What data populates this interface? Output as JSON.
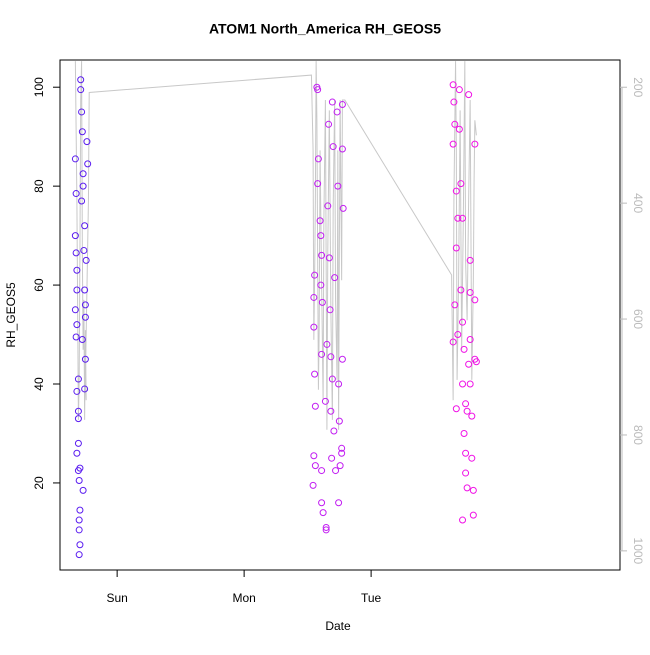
{
  "chart_data": {
    "type": "scatter",
    "title": "ATOM1 North_America RH_GEOS5",
    "x_label": "Date",
    "y_label": "RH_GEOS5",
    "xlim": [
      -0.45,
      3.96
    ],
    "xticks": [
      {
        "value": 0,
        "label": "Sun"
      },
      {
        "value": 1,
        "label": "Mon"
      },
      {
        "value": 2,
        "label": "Tue"
      }
    ],
    "ylim": [
      2.4,
      105.5
    ],
    "yticks": [
      20,
      40,
      60,
      80,
      100
    ],
    "y2lim": [
      1033,
      153
    ],
    "y2ticks": [
      200,
      400,
      600,
      800,
      1000
    ],
    "y2_color": "#bbbbbb",
    "series": [
      {
        "color": "#5a1cf0",
        "x": [
          -0.329,
          -0.323,
          -0.329,
          -0.323,
          -0.317,
          -0.317,
          -0.329,
          -0.317,
          -0.323,
          -0.305,
          -0.317,
          -0.305,
          -0.305,
          -0.305,
          -0.317,
          -0.293,
          -0.305,
          -0.299,
          -0.293,
          -0.299,
          -0.299,
          -0.293,
          -0.299,
          -0.287,
          -0.287,
          -0.28,
          -0.274,
          -0.268,
          -0.268,
          -0.28,
          -0.256,
          -0.262,
          -0.244,
          -0.256,
          -0.25,
          -0.25,
          -0.274,
          -0.25,
          -0.256,
          -0.268,
          -0.238,
          -0.232
        ],
        "values": [
          85.5,
          78.5,
          70,
          66.5,
          63,
          59,
          55,
          52,
          49.5,
          41,
          38.5,
          34.5,
          33,
          28,
          26,
          23,
          22.5,
          20.5,
          14.5,
          12.5,
          10.5,
          7.5,
          5.5,
          101.5,
          99.5,
          95,
          91,
          82.5,
          80,
          77,
          72,
          67,
          65,
          59,
          56,
          53.5,
          49,
          45,
          39,
          18.5,
          89,
          84.5
        ]
      },
      {
        "color": "#c21ef2",
        "x": [
          1.549,
          1.555,
          1.549,
          1.555,
          1.549,
          1.543,
          1.561,
          1.561,
          1.573,
          1.579,
          1.585,
          1.579,
          1.598,
          1.604,
          1.61,
          1.604,
          1.616,
          1.61,
          1.61,
          1.61,
          1.622,
          1.646,
          1.646,
          1.64,
          1.652,
          1.665,
          1.659,
          1.671,
          1.677,
          1.683,
          1.683,
          1.695,
          1.701,
          1.689,
          1.695,
          1.707,
          1.713,
          1.72,
          1.732,
          1.738,
          1.744,
          1.75,
          1.744,
          1.756,
          1.768,
          1.774,
          1.774,
          1.78,
          1.774,
          1.768
        ],
        "values": [
          57.5,
          62,
          51.5,
          42,
          25.5,
          19.5,
          35.5,
          23.5,
          100,
          99.5,
          85.5,
          80.5,
          73,
          70,
          66,
          60,
          56.5,
          46,
          22.5,
          16,
          14,
          11,
          10.5,
          36.5,
          48,
          92.5,
          76,
          65.5,
          55,
          45.5,
          34.5,
          97,
          88,
          25,
          41,
          30.5,
          61.5,
          22.5,
          95,
          80,
          40,
          32.5,
          16,
          23.5,
          27,
          96.5,
          87.5,
          75.5,
          45,
          26
        ]
      },
      {
        "color": "#f012e6",
        "x": [
          2.646,
          2.652,
          2.659,
          2.646,
          2.671,
          2.683,
          2.671,
          2.659,
          2.646,
          2.683,
          2.671,
          2.695,
          2.695,
          2.707,
          2.72,
          2.707,
          2.72,
          2.732,
          2.72,
          2.732,
          2.744,
          2.72,
          2.744,
          2.756,
          2.756,
          2.768,
          2.78,
          2.78,
          2.78,
          2.768,
          2.78,
          2.793,
          2.793,
          2.805,
          2.805,
          2.817,
          2.817,
          2.817,
          2.829,
          2.744
        ],
        "values": [
          100.5,
          97,
          92.5,
          88.5,
          79,
          73.5,
          67.5,
          56,
          48.5,
          50,
          35,
          99.5,
          91.5,
          80.5,
          73.5,
          59,
          52.5,
          47,
          40,
          30,
          26,
          12.5,
          22,
          34.5,
          19,
          98.5,
          65,
          58.5,
          49,
          44,
          40,
          33.5,
          25,
          18.5,
          13.5,
          57,
          45,
          88.5,
          44.5,
          36
        ]
      },
      {
        "type": "line",
        "axis": "y2",
        "color": "#c8c8c8",
        "x": [
          -0.329,
          -0.317,
          -0.305,
          -0.299,
          -0.293,
          -0.287,
          -0.28,
          -0.274,
          -0.268,
          -0.262,
          -0.256,
          -0.25,
          -0.244,
          -0.25,
          -0.226,
          -0.22,
          1.53,
          1.543,
          1.549,
          1.555,
          1.561,
          1.567,
          1.573,
          1.585,
          1.591,
          1.598,
          1.61,
          1.622,
          1.628,
          1.64,
          1.652,
          1.659,
          1.671,
          1.683,
          1.695,
          1.701,
          1.713,
          1.72,
          1.732,
          1.738,
          1.744,
          1.75,
          1.756,
          1.768,
          1.774,
          1.793,
          2.634,
          2.646,
          2.652,
          2.665,
          2.671,
          2.677,
          2.689,
          2.701,
          2.713,
          2.726,
          2.738,
          2.744,
          2.756,
          2.768,
          2.78,
          2.793,
          2.805,
          2.811,
          2.817,
          2.829
        ],
        "values": [
          155,
          395,
          774,
          705,
          481,
          222,
          155,
          481,
          653,
          567,
          774,
          619,
          740,
          705,
          395,
          209,
          179,
          309,
          636,
          533,
          395,
          155,
          257,
          722,
          619,
          309,
          533,
          740,
          429,
          222,
          791,
          481,
          240,
          584,
          774,
          412,
          222,
          567,
          705,
          309,
          791,
          481,
          222,
          533,
          222,
          222,
          524,
          740,
          395,
          155,
          309,
          705,
          533,
          240,
          653,
          429,
          155,
          498,
          602,
          395,
          222,
          705,
          533,
          360,
          257,
          283
        ]
      }
    ]
  }
}
